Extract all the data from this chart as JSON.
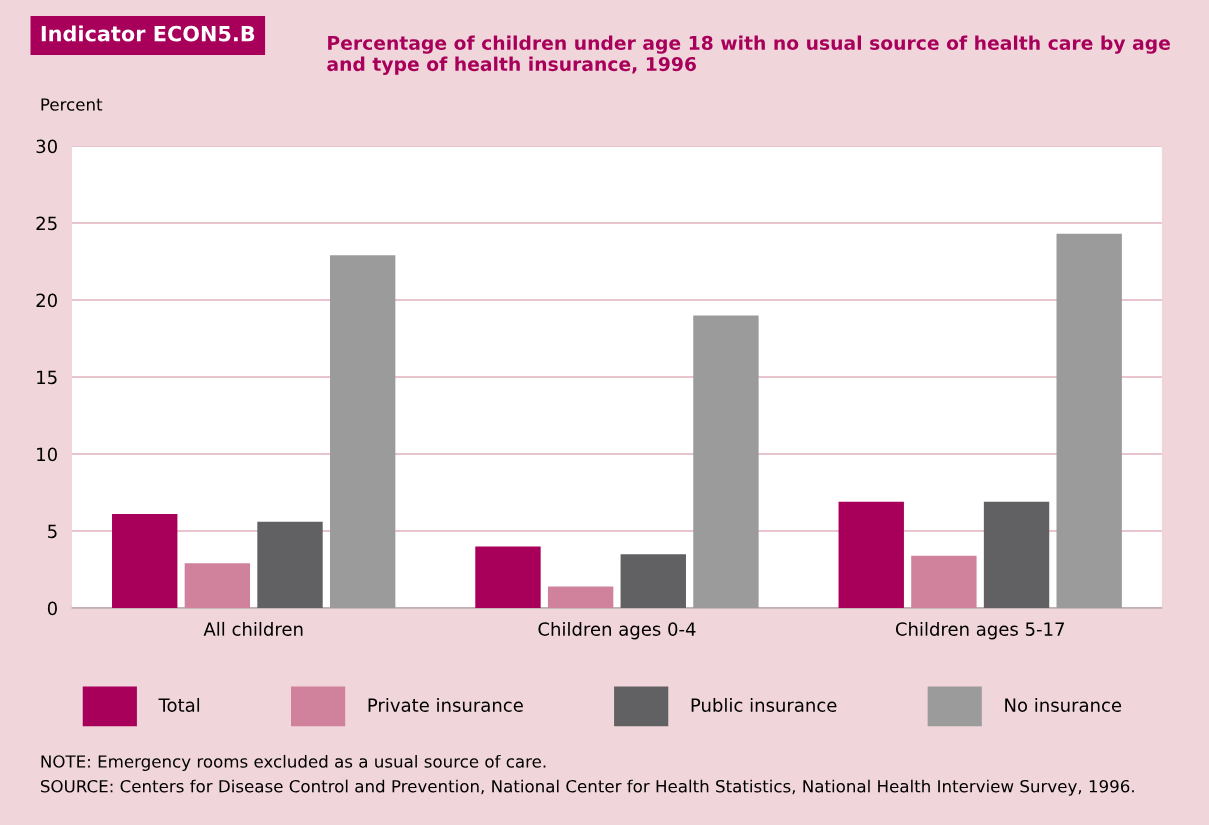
{
  "chart_data": {
    "type": "bar",
    "subtitle": "Indicator ECON5.B",
    "title": "Percentage of children under age 18 with no usual source of health care by age and type of health insurance, 1996",
    "ylabel": "Percent",
    "categories": [
      "All children",
      "Children ages 0-4",
      "Children ages 5-17"
    ],
    "series": [
      {
        "name": "Total",
        "color": "#a8005a",
        "values": [
          6.1,
          4.0,
          6.9
        ]
      },
      {
        "name": "Private insurance",
        "color": "#d0819c",
        "values": [
          2.9,
          1.4,
          3.4
        ]
      },
      {
        "name": "Public insurance",
        "color": "#616163",
        "values": [
          5.6,
          3.5,
          6.9
        ]
      },
      {
        "name": "No insurance",
        "color": "#9b9b9c",
        "values": [
          22.9,
          19.0,
          24.3
        ]
      }
    ],
    "ylim": [
      0,
      30
    ],
    "yticks": [
      0,
      5,
      10,
      15,
      20,
      25,
      30
    ],
    "grid": "y",
    "legend": "bottom",
    "annotations": [
      "NOTE: Emergency rooms excluded as a usual source of care.",
      "SOURCE: Centers for Disease Control and Prevention, National Center for Health Statistics, National Health Interview Survey, 1996."
    ]
  }
}
